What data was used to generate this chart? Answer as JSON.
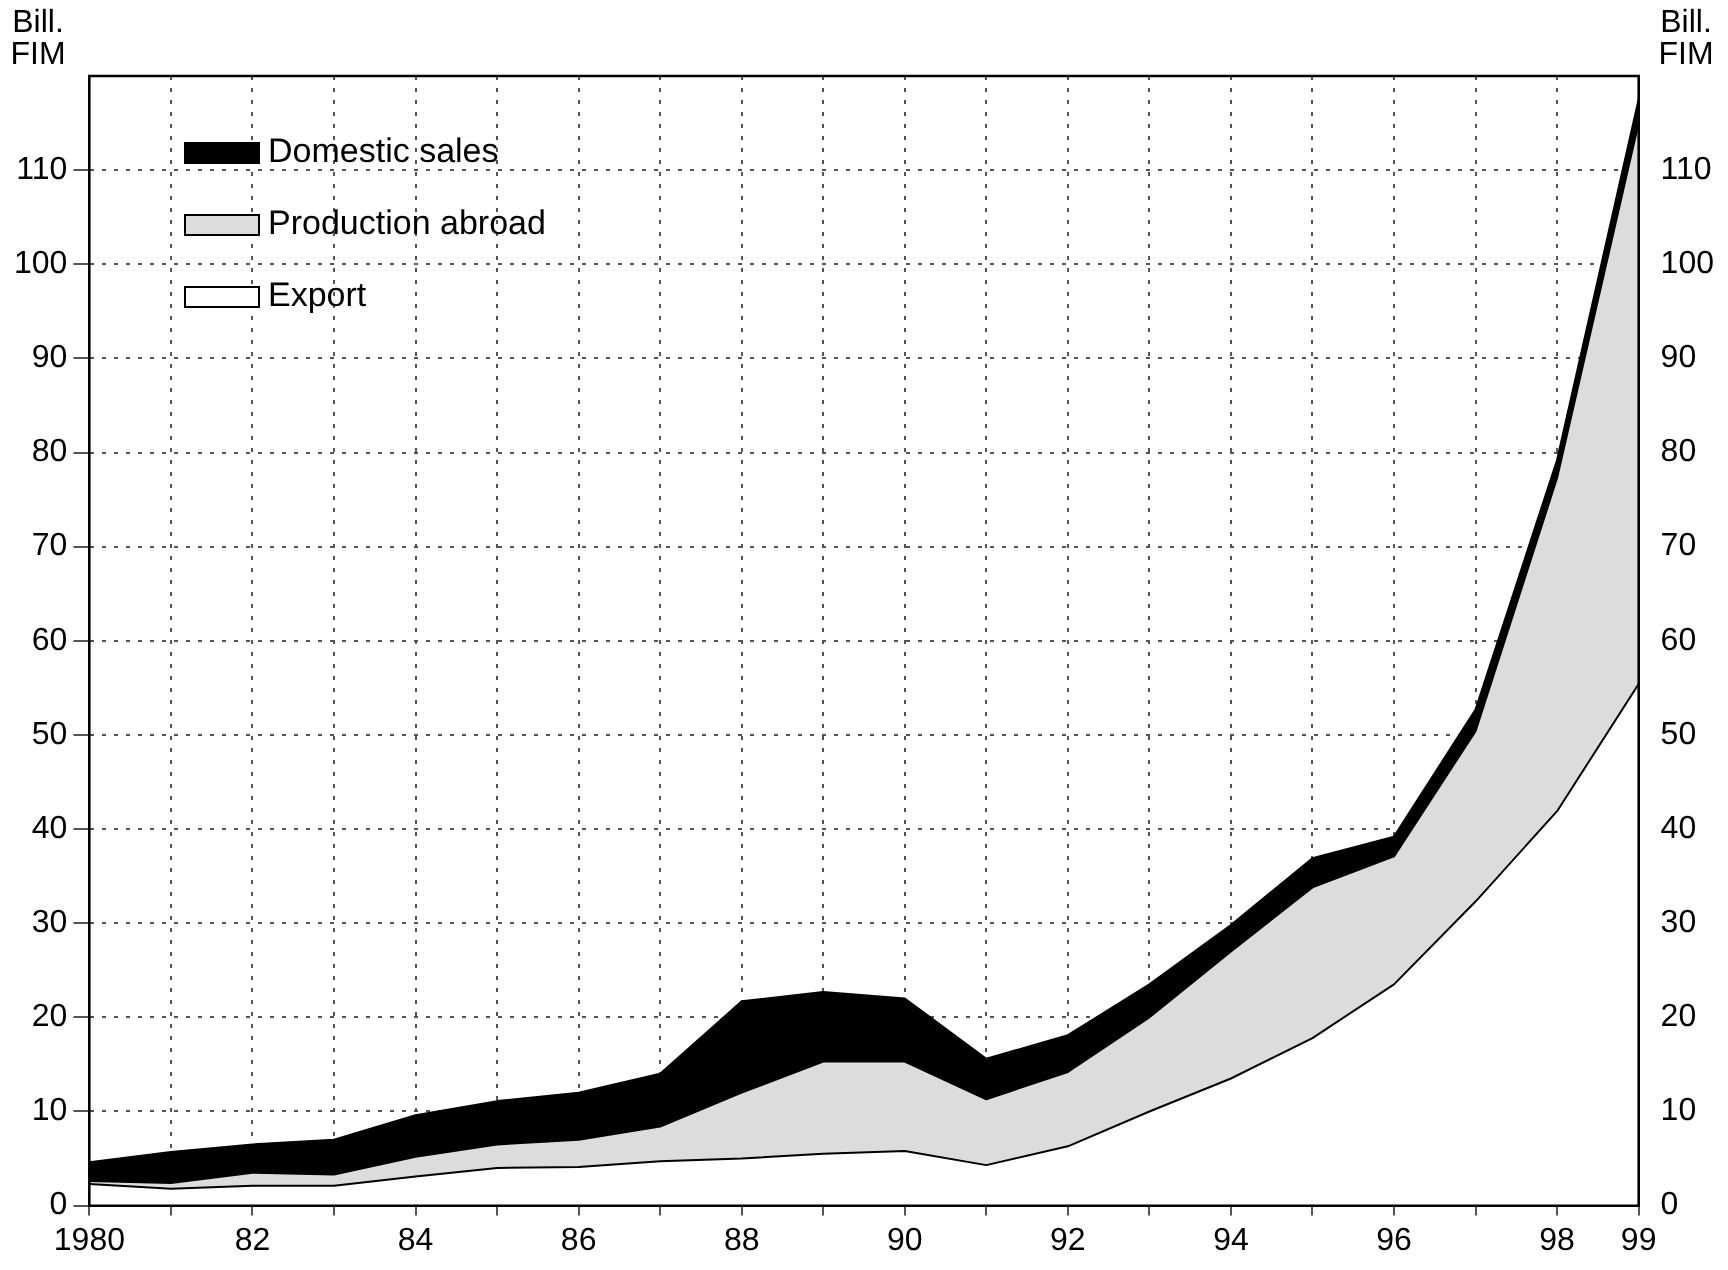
{
  "chart_data": {
    "type": "area",
    "stacked": true,
    "ylabel": "Bill. FIM",
    "y2label": "Bill. FIM",
    "x": [
      1980,
      1981,
      1982,
      1983,
      1984,
      1985,
      1986,
      1987,
      1988,
      1989,
      1990,
      1991,
      1992,
      1993,
      1994,
      1995,
      1996,
      1997,
      1998,
      1999
    ],
    "xlim": [
      1980,
      1999
    ],
    "xticks": [
      {
        "value": 1980,
        "label": "1980"
      },
      {
        "value": 1981,
        "label": null
      },
      {
        "value": 1982,
        "label": "82"
      },
      {
        "value": 1983,
        "label": null
      },
      {
        "value": 1984,
        "label": "84"
      },
      {
        "value": 1985,
        "label": null
      },
      {
        "value": 1986,
        "label": "86"
      },
      {
        "value": 1987,
        "label": null
      },
      {
        "value": 1988,
        "label": "88"
      },
      {
        "value": 1989,
        "label": null
      },
      {
        "value": 1990,
        "label": "90"
      },
      {
        "value": 1991,
        "label": null
      },
      {
        "value": 1992,
        "label": "92"
      },
      {
        "value": 1993,
        "label": null
      },
      {
        "value": 1994,
        "label": "94"
      },
      {
        "value": 1995,
        "label": null
      },
      {
        "value": 1996,
        "label": "96"
      },
      {
        "value": 1997,
        "label": null
      },
      {
        "value": 1998,
        "label": "98"
      },
      {
        "value": 1999,
        "label": "99"
      }
    ],
    "ylim": [
      0,
      120
    ],
    "yticks": [
      0,
      10,
      20,
      30,
      40,
      50,
      60,
      70,
      80,
      90,
      100,
      110
    ],
    "y2lim": [
      0,
      120
    ],
    "y2ticks": [
      0,
      10,
      20,
      30,
      40,
      50,
      60,
      70,
      80,
      90,
      100,
      110
    ],
    "grid": true,
    "legend": "top left",
    "series": [
      {
        "name": "Export",
        "color": "#ffffff",
        "values": [
          2.3,
          1.8,
          2.1,
          2.1,
          3.1,
          4.0,
          4.1,
          4.7,
          5.0,
          5.5,
          5.8,
          4.3,
          6.3,
          10.0,
          13.5,
          17.8,
          23.5,
          32.3,
          41.9,
          55.4
        ]
      },
      {
        "name": "Production abroad",
        "color": "#dcdcdc",
        "values": [
          0.3,
          0.6,
          1.4,
          1.2,
          2.1,
          2.5,
          2.9,
          3.7,
          7.0,
          9.8,
          9.5,
          7.0,
          7.9,
          10.0,
          13.5,
          16.0,
          13.6,
          18.1,
          35.4,
          59.6
        ]
      },
      {
        "name": "Domestic sales",
        "color": "#000000",
        "values": [
          2.0,
          3.3,
          3.0,
          3.7,
          4.4,
          4.6,
          5.0,
          5.6,
          9.7,
          7.4,
          6.7,
          4.3,
          3.9,
          3.5,
          2.8,
          3.1,
          2.1,
          2.3,
          1.9,
          2.5
        ]
      }
    ]
  }
}
